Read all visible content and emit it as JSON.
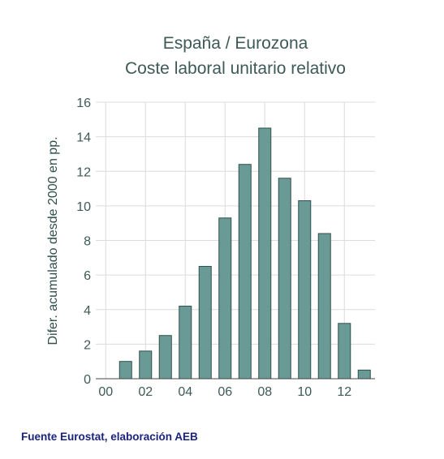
{
  "chart_data": {
    "type": "bar",
    "title_lines": [
      "España / Eurozona",
      "Coste laboral unitario relativo"
    ],
    "ylabel": "Difer. acumulado desde 2000 en pp.",
    "xlabel": "",
    "categories": [
      "00",
      "01",
      "02",
      "03",
      "04",
      "05",
      "06",
      "07",
      "08",
      "09",
      "10",
      "11",
      "12",
      "13"
    ],
    "values": [
      0,
      1.0,
      1.6,
      2.5,
      4.2,
      6.5,
      9.3,
      12.4,
      14.5,
      11.6,
      10.3,
      8.4,
      3.2,
      0.5
    ],
    "ylim": [
      0,
      16
    ],
    "yticks": [
      "0",
      "2",
      "4",
      "6",
      "8",
      "10",
      "12",
      "14",
      "16"
    ],
    "xtick_labels": [
      "00",
      "02",
      "04",
      "06",
      "08",
      "10",
      "12"
    ],
    "bar_color": "#6a9a96",
    "grid": true
  },
  "footer": {
    "source": "Fuente Eurostat, elaboración AEB"
  }
}
